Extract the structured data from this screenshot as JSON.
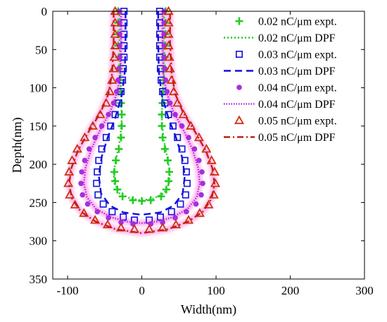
{
  "chart_data": {
    "type": "scatter",
    "xlabel": "Width(nm)",
    "ylabel": "Depth(nm)",
    "xlim": [
      -120,
      300
    ],
    "ylim": [
      0,
      350
    ],
    "y_inverted": true,
    "xticks": [
      "-100",
      "0",
      "100",
      "200",
      "300"
    ],
    "yticks": [
      "0",
      "50",
      "100",
      "150",
      "200",
      "250",
      "300",
      "350"
    ],
    "grid": false,
    "legend_position": "top-right",
    "series": [
      {
        "name": "0.02 nC/μm expt.",
        "kind": "markers",
        "marker": "plus",
        "color": "#22cc22",
        "points": [
          [
            -32,
            0
          ],
          [
            -32,
            15
          ],
          [
            -32,
            30
          ],
          [
            -32,
            45
          ],
          [
            -31,
            60
          ],
          [
            -31,
            75
          ],
          [
            -30,
            90
          ],
          [
            -29,
            105
          ],
          [
            -28,
            120
          ],
          [
            -27,
            135
          ],
          [
            -27,
            150
          ],
          [
            -28,
            165
          ],
          [
            -31,
            180
          ],
          [
            -35,
            195
          ],
          [
            -37,
            210
          ],
          [
            -36,
            222
          ],
          [
            -33,
            233
          ],
          [
            -26,
            242
          ],
          [
            -12,
            247
          ],
          [
            0,
            248
          ],
          [
            12,
            247
          ],
          [
            26,
            242
          ],
          [
            33,
            233
          ],
          [
            36,
            222
          ],
          [
            37,
            210
          ],
          [
            35,
            195
          ],
          [
            31,
            180
          ],
          [
            28,
            165
          ],
          [
            27,
            150
          ],
          [
            27,
            135
          ],
          [
            28,
            120
          ],
          [
            29,
            105
          ],
          [
            30,
            90
          ],
          [
            31,
            75
          ],
          [
            31,
            60
          ],
          [
            32,
            45
          ],
          [
            32,
            30
          ],
          [
            32,
            15
          ],
          [
            32,
            0
          ]
        ]
      },
      {
        "name": "0.02 nC/μm DPF",
        "kind": "line",
        "dash": "dotted",
        "color": "#22cc22",
        "points": [
          [
            -30,
            0
          ],
          [
            -30,
            40
          ],
          [
            -29,
            80
          ],
          [
            -28,
            110
          ],
          [
            -27,
            140
          ],
          [
            -29,
            165
          ],
          [
            -34,
            190
          ],
          [
            -38,
            210
          ],
          [
            -37,
            225
          ],
          [
            -30,
            238
          ],
          [
            -15,
            245
          ],
          [
            0,
            247
          ],
          [
            15,
            245
          ],
          [
            30,
            238
          ],
          [
            37,
            225
          ],
          [
            38,
            210
          ],
          [
            34,
            190
          ],
          [
            29,
            165
          ],
          [
            27,
            140
          ],
          [
            28,
            110
          ],
          [
            29,
            80
          ],
          [
            30,
            40
          ],
          [
            30,
            0
          ]
        ]
      },
      {
        "name": "0.03 nC/μm expt.",
        "kind": "markers",
        "marker": "square",
        "color": "#1010dd",
        "points": [
          [
            -24,
            0
          ],
          [
            -24,
            15
          ],
          [
            -24,
            30
          ],
          [
            -24,
            45
          ],
          [
            -24,
            60
          ],
          [
            -25,
            75
          ],
          [
            -26,
            90
          ],
          [
            -28,
            105
          ],
          [
            -31,
            120
          ],
          [
            -36,
            135
          ],
          [
            -42,
            150
          ],
          [
            -48,
            165
          ],
          [
            -54,
            180
          ],
          [
            -58,
            195
          ],
          [
            -60,
            210
          ],
          [
            -61,
            225
          ],
          [
            -59,
            240
          ],
          [
            -52,
            252
          ],
          [
            -40,
            262
          ],
          [
            -25,
            269
          ],
          [
            -10,
            273
          ],
          [
            10,
            273
          ],
          [
            25,
            269
          ],
          [
            40,
            262
          ],
          [
            52,
            252
          ],
          [
            59,
            240
          ],
          [
            61,
            225
          ],
          [
            60,
            210
          ],
          [
            58,
            195
          ],
          [
            54,
            180
          ],
          [
            48,
            165
          ],
          [
            42,
            150
          ],
          [
            36,
            135
          ],
          [
            31,
            120
          ],
          [
            28,
            105
          ],
          [
            26,
            90
          ],
          [
            25,
            75
          ],
          [
            24,
            60
          ],
          [
            24,
            45
          ],
          [
            24,
            30
          ],
          [
            24,
            15
          ],
          [
            24,
            0
          ]
        ]
      },
      {
        "name": "0.03 nC/μm DPF",
        "kind": "line",
        "dash": "dashed",
        "color": "#1010dd",
        "points": [
          [
            -22,
            0
          ],
          [
            -22,
            40
          ],
          [
            -23,
            80
          ],
          [
            -27,
            110
          ],
          [
            -36,
            140
          ],
          [
            -46,
            165
          ],
          [
            -54,
            190
          ],
          [
            -58,
            215
          ],
          [
            -55,
            238
          ],
          [
            -43,
            254
          ],
          [
            -25,
            263
          ],
          [
            0,
            266
          ],
          [
            25,
            263
          ],
          [
            43,
            254
          ],
          [
            55,
            238
          ],
          [
            58,
            215
          ],
          [
            54,
            190
          ],
          [
            46,
            165
          ],
          [
            36,
            140
          ],
          [
            27,
            110
          ],
          [
            23,
            80
          ],
          [
            22,
            40
          ],
          [
            22,
            0
          ]
        ]
      },
      {
        "name": "0.04 nC/μm expt.",
        "kind": "markers",
        "marker": "circle",
        "color": "#a530dd",
        "points": [
          [
            -30,
            0
          ],
          [
            -30,
            15
          ],
          [
            -30,
            30
          ],
          [
            -30,
            45
          ],
          [
            -30,
            60
          ],
          [
            -31,
            75
          ],
          [
            -32,
            90
          ],
          [
            -34,
            105
          ],
          [
            -38,
            120
          ],
          [
            -45,
            135
          ],
          [
            -54,
            150
          ],
          [
            -63,
            165
          ],
          [
            -71,
            180
          ],
          [
            -77,
            195
          ],
          [
            -81,
            210
          ],
          [
            -82,
            225
          ],
          [
            -80,
            240
          ],
          [
            -73,
            252
          ],
          [
            -60,
            262
          ],
          [
            -45,
            270
          ],
          [
            -28,
            276
          ],
          [
            -12,
            278
          ],
          [
            12,
            278
          ],
          [
            28,
            276
          ],
          [
            45,
            270
          ],
          [
            60,
            262
          ],
          [
            73,
            252
          ],
          [
            80,
            240
          ],
          [
            82,
            225
          ],
          [
            81,
            210
          ],
          [
            77,
            195
          ],
          [
            71,
            180
          ],
          [
            63,
            165
          ],
          [
            54,
            150
          ],
          [
            45,
            135
          ],
          [
            38,
            120
          ],
          [
            34,
            105
          ],
          [
            32,
            90
          ],
          [
            31,
            75
          ],
          [
            30,
            60
          ],
          [
            30,
            45
          ],
          [
            30,
            30
          ],
          [
            30,
            15
          ],
          [
            30,
            0
          ]
        ]
      },
      {
        "name": "0.04 nC/μm DPF",
        "kind": "line",
        "dash": "fine-dotted",
        "color": "#b020e0",
        "points": [
          [
            -28,
            0
          ],
          [
            -28,
            40
          ],
          [
            -29,
            80
          ],
          [
            -33,
            105
          ],
          [
            -42,
            130
          ],
          [
            -56,
            155
          ],
          [
            -68,
            180
          ],
          [
            -76,
            205
          ],
          [
            -78,
            225
          ],
          [
            -74,
            243
          ],
          [
            -62,
            258
          ],
          [
            -42,
            269
          ],
          [
            -20,
            275
          ],
          [
            0,
            277
          ],
          [
            20,
            275
          ],
          [
            42,
            269
          ],
          [
            62,
            258
          ],
          [
            74,
            243
          ],
          [
            78,
            225
          ],
          [
            76,
            205
          ],
          [
            68,
            180
          ],
          [
            56,
            155
          ],
          [
            42,
            130
          ],
          [
            33,
            105
          ],
          [
            29,
            80
          ],
          [
            28,
            40
          ],
          [
            28,
            0
          ]
        ]
      },
      {
        "name": "0.05 nC/μm expt.",
        "kind": "markers",
        "marker": "triangle",
        "color": "#d03010",
        "points": [
          [
            -36,
            0
          ],
          [
            -36,
            15
          ],
          [
            -36,
            30
          ],
          [
            -36,
            45
          ],
          [
            -37,
            60
          ],
          [
            -38,
            75
          ],
          [
            -40,
            90
          ],
          [
            -43,
            105
          ],
          [
            -48,
            120
          ],
          [
            -56,
            135
          ],
          [
            -66,
            150
          ],
          [
            -77,
            165
          ],
          [
            -87,
            180
          ],
          [
            -94,
            195
          ],
          [
            -98,
            210
          ],
          [
            -99,
            225
          ],
          [
            -97,
            240
          ],
          [
            -90,
            253
          ],
          [
            -78,
            264
          ],
          [
            -63,
            273
          ],
          [
            -46,
            279
          ],
          [
            -28,
            283
          ],
          [
            -10,
            285
          ],
          [
            10,
            285
          ],
          [
            28,
            283
          ],
          [
            46,
            279
          ],
          [
            63,
            273
          ],
          [
            78,
            264
          ],
          [
            90,
            253
          ],
          [
            97,
            240
          ],
          [
            99,
            225
          ],
          [
            98,
            210
          ],
          [
            94,
            195
          ],
          [
            87,
            180
          ],
          [
            77,
            165
          ],
          [
            66,
            150
          ],
          [
            56,
            135
          ],
          [
            48,
            120
          ],
          [
            43,
            105
          ],
          [
            40,
            90
          ],
          [
            38,
            75
          ],
          [
            37,
            60
          ],
          [
            36,
            45
          ],
          [
            36,
            30
          ],
          [
            36,
            15
          ],
          [
            36,
            0
          ]
        ]
      },
      {
        "name": "0.05 nC/μm DPF",
        "kind": "line",
        "dash": "dash-dot",
        "color": "#c02010",
        "points": [
          [
            -38,
            0
          ],
          [
            -38,
            40
          ],
          [
            -40,
            80
          ],
          [
            -45,
            108
          ],
          [
            -56,
            133
          ],
          [
            -72,
            158
          ],
          [
            -86,
            182
          ],
          [
            -95,
            205
          ],
          [
            -98,
            226
          ],
          [
            -94,
            245
          ],
          [
            -82,
            262
          ],
          [
            -62,
            275
          ],
          [
            -35,
            285
          ],
          [
            0,
            290
          ],
          [
            35,
            285
          ],
          [
            62,
            275
          ],
          [
            82,
            262
          ],
          [
            94,
            245
          ],
          [
            98,
            226
          ],
          [
            95,
            205
          ],
          [
            86,
            182
          ],
          [
            72,
            158
          ],
          [
            56,
            133
          ],
          [
            45,
            108
          ],
          [
            40,
            80
          ],
          [
            38,
            40
          ],
          [
            38,
            0
          ]
        ]
      }
    ]
  }
}
